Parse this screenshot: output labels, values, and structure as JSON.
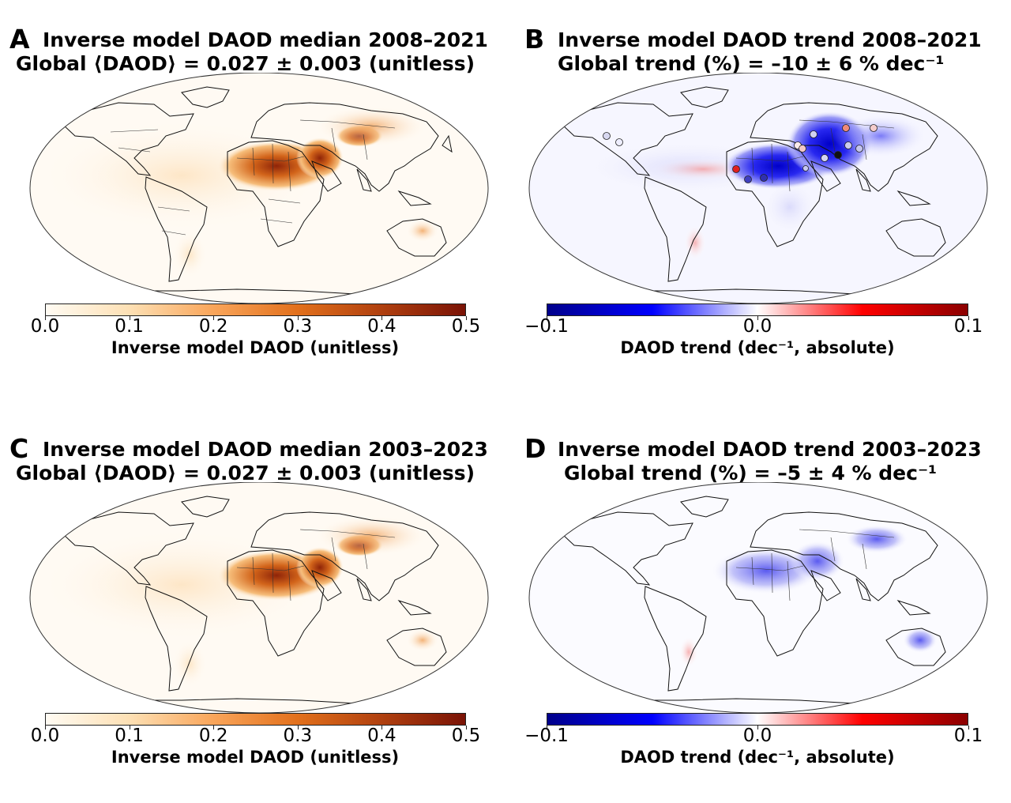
{
  "colors": {
    "daod_ramp": [
      "#fffbf3",
      "#fde0b4",
      "#f9a55a",
      "#e2701c",
      "#b0400f",
      "#7a1306"
    ],
    "trend_ramp": [
      "#00008b",
      "#0000ff",
      "#ffffff",
      "#ff0000",
      "#8b0000"
    ]
  },
  "panels": [
    {
      "letter": "A",
      "title_line1": "Inverse model DAOD median 2008–2021",
      "title_line2": "Global ⟨DAOD⟩ = 0.027 ± 0.003 (unitless)",
      "variable": "DAOD median",
      "colormap": "daod",
      "colorbar": {
        "ticks": [
          "0.0",
          "0.1",
          "0.2",
          "0.3",
          "0.4",
          "0.5"
        ],
        "label": "Inverse model DAOD (unitless)",
        "range": [
          0.0,
          0.5
        ]
      },
      "has_stations": false
    },
    {
      "letter": "B",
      "title_line1": "Inverse model DAOD trend 2008–2021",
      "title_line2": "Global trend (%) = –10 ± 6 % dec⁻¹",
      "variable": "DAOD trend",
      "colormap": "trend",
      "colorbar": {
        "ticks": [
          "−0.1",
          "0.0",
          "0.1"
        ],
        "label": "DAOD trend (dec⁻¹, absolute)",
        "range": [
          -0.1,
          0.1
        ]
      },
      "has_stations": true
    },
    {
      "letter": "C",
      "title_line1": "Inverse model DAOD median 2003–2023",
      "title_line2": "Global ⟨DAOD⟩ = 0.027 ± 0.003 (unitless)",
      "variable": "DAOD median",
      "colormap": "daod",
      "colorbar": {
        "ticks": [
          "0.0",
          "0.1",
          "0.2",
          "0.3",
          "0.4",
          "0.5"
        ],
        "label": "Inverse model DAOD (unitless)",
        "range": [
          0.0,
          0.5
        ]
      },
      "has_stations": false
    },
    {
      "letter": "D",
      "title_line1": "Inverse model DAOD trend 2003–2023",
      "title_line2": "Global trend (%) = –5 ± 4 % dec⁻¹",
      "variable": "DAOD trend",
      "colormap": "trend",
      "colorbar": {
        "ticks": [
          "−0.1",
          "0.0",
          "0.1"
        ],
        "label": "DAOD trend (dec⁻¹, absolute)",
        "range": [
          -0.1,
          0.1
        ]
      },
      "has_stations": false
    }
  ]
}
